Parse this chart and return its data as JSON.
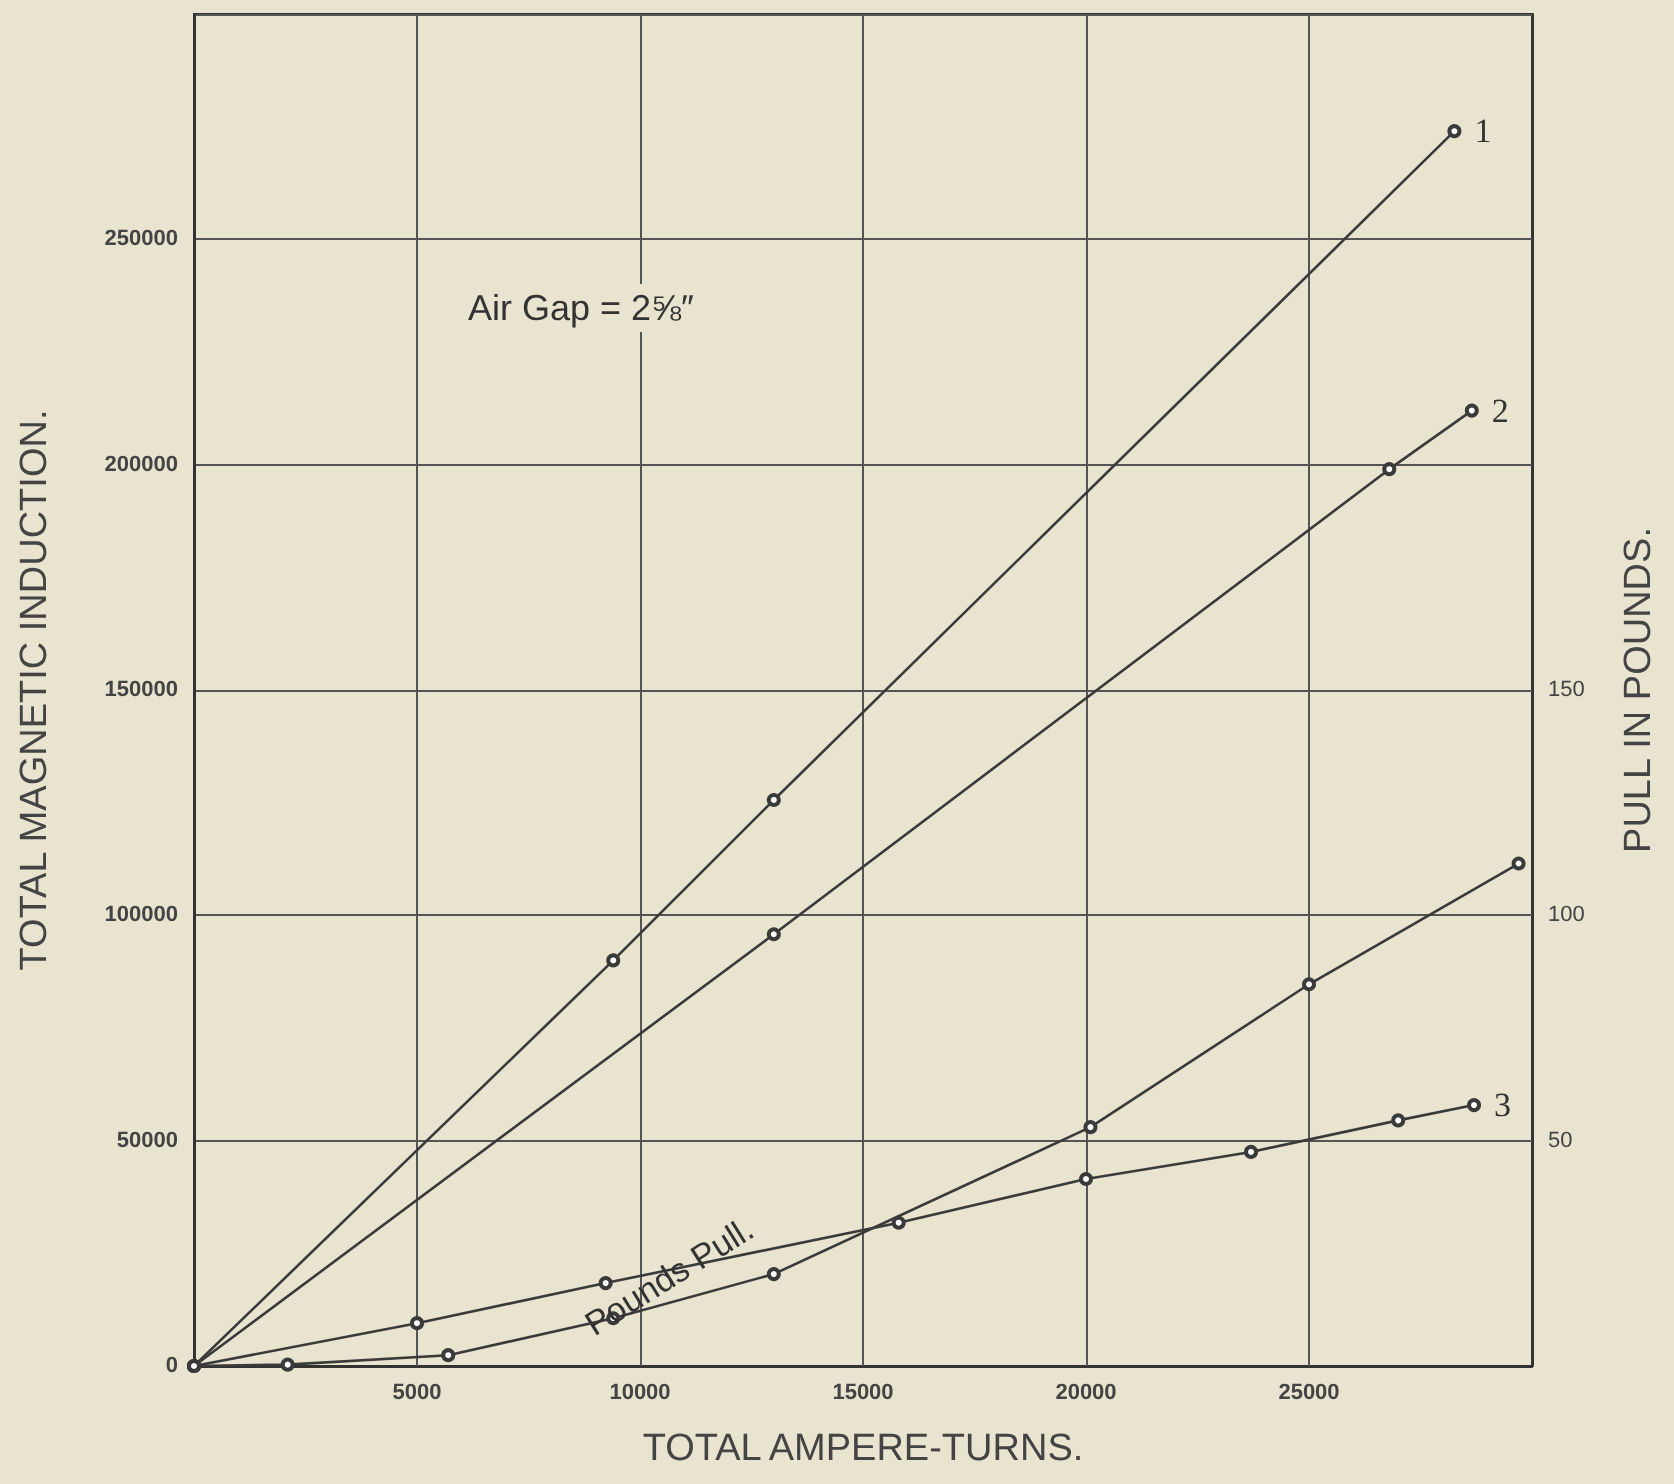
{
  "chart_data": {
    "type": "line",
    "xlabel": "TOTAL AMPERE-TURNS.",
    "ylabel": "TOTAL MAGNETIC INDUCTION.",
    "y2label": "PULL IN POUNDS.",
    "annotations": [
      "Air Gap = 2⅝″"
    ],
    "xlim": [
      0,
      30000
    ],
    "xticks": [
      5000,
      10000,
      15000,
      20000,
      25000
    ],
    "ylim": [
      0,
      300000
    ],
    "yticks": [
      0,
      50000,
      100000,
      150000,
      200000,
      250000
    ],
    "y2lim": [
      0,
      300
    ],
    "y2ticks": [
      50,
      100,
      150
    ],
    "grid": true,
    "legend": false,
    "marker": "circle",
    "line_style": "solid",
    "series": [
      {
        "name": "1",
        "color": "#3a3a3a",
        "x": [
          0,
          9400,
          13000,
          28260
        ],
        "values": [
          0,
          90000,
          125600,
          274000
        ]
      },
      {
        "name": "2",
        "color": "#3a3a3a",
        "x": [
          0,
          13000,
          26800,
          28650
        ],
        "values": [
          0,
          95800,
          199000,
          212000
        ]
      },
      {
        "name": "3",
        "color": "#3a3a3a",
        "x": [
          0,
          5000,
          9230,
          15800,
          20000,
          23700,
          27000,
          28700
        ],
        "values": [
          0,
          9500,
          18400,
          31800,
          41500,
          47500,
          54500,
          57900
        ]
      },
      {
        "name": "Pounds Pull.",
        "color": "#3a3a3a",
        "axis": "y2",
        "x": [
          0,
          2100,
          5700,
          9400,
          13000,
          20100,
          25000,
          29700
        ],
        "values": [
          0,
          0.3,
          2.4,
          10.6,
          20.4,
          53,
          84.7,
          111.5
        ]
      }
    ]
  }
}
